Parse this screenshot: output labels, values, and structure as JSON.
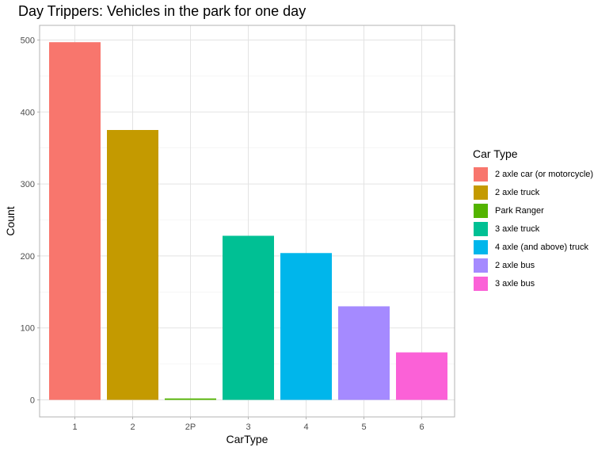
{
  "chart_data": {
    "type": "bar",
    "title": "Day Trippers: Vehicles in the park for one day",
    "xlabel": "CarType",
    "ylabel": "Count",
    "categories": [
      "1",
      "2",
      "2P",
      "3",
      "4",
      "5",
      "6"
    ],
    "values": [
      497,
      375,
      2,
      228,
      204,
      130,
      66
    ],
    "colors": [
      "#F8766D",
      "#C49A00",
      "#53B400",
      "#00C094",
      "#00B6EB",
      "#A58AFF",
      "#FB61D7"
    ],
    "ylim": [
      0,
      500
    ],
    "yticks": [
      "0",
      "100",
      "200",
      "300",
      "400",
      "500"
    ],
    "grid": true,
    "legend": {
      "title": "Car Type",
      "position": "right",
      "entries": [
        "2 axle car (or motorcycle)",
        "2 axle truck",
        "Park Ranger",
        "3 axle truck",
        "4 axle (and above) truck",
        "2 axle bus",
        "3 axle bus"
      ]
    }
  }
}
